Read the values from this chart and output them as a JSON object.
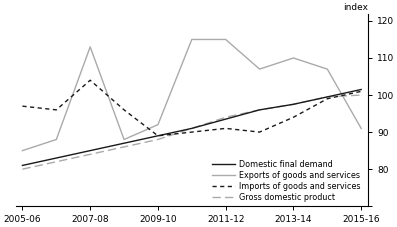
{
  "x_values": [
    0,
    1,
    2,
    3,
    4,
    5,
    6,
    7,
    8,
    9,
    10
  ],
  "domestic_final_demand": [
    81,
    83,
    85,
    87,
    89,
    91,
    93.5,
    96,
    97.5,
    99.5,
    101.5
  ],
  "exports_goods_services": [
    85,
    88,
    113,
    88,
    92,
    115,
    115,
    107,
    110,
    107,
    91
  ],
  "imports_goods_services": [
    97,
    96,
    104,
    96,
    89,
    90,
    91,
    90,
    94,
    99,
    101
  ],
  "gross_domestic_product": [
    80,
    82,
    84,
    86,
    88,
    91,
    94,
    96,
    97.5,
    99.5,
    100
  ],
  "ylim": [
    70,
    122
  ],
  "yticks": [
    70,
    80,
    90,
    100,
    110,
    120
  ],
  "xlim": [
    -0.2,
    10.2
  ],
  "x_tick_positions": [
    0,
    2,
    4,
    6,
    8,
    10
  ],
  "x_tick_labels": [
    "2005-06",
    "2007-08",
    "2009-10",
    "2011-12",
    "2013-14",
    "2015-16"
  ],
  "ylabel": "index",
  "color_domestic": "#1a1a1a",
  "color_exports": "#aaaaaa",
  "color_imports": "#1a1a1a",
  "color_gdp": "#aaaaaa",
  "lw_main": 1.0,
  "legend_labels": [
    "Domestic final demand",
    "Exports of goods and services",
    "Imports of goods and services",
    "Gross domestic product"
  ]
}
